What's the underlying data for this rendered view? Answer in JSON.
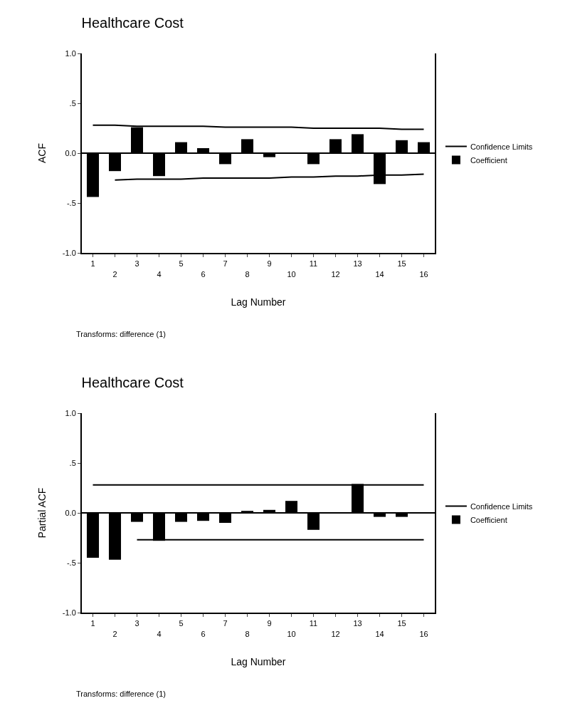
{
  "chart_data": [
    {
      "type": "bar",
      "title": "Healthcare Cost",
      "xlabel": "Lag Number",
      "ylabel": "ACF",
      "ref_lines": [
        {
          "axis": "y",
          "value": 0
        }
      ],
      "annotations": [
        "Transforms: difference (1)"
      ],
      "categories": [
        "1",
        "2",
        "3",
        "4",
        "5",
        "6",
        "7",
        "8",
        "9",
        "10",
        "11",
        "12",
        "13",
        "14",
        "15",
        "16"
      ],
      "series": [
        {
          "name": "Coefficient",
          "color": "#000000",
          "values": [
            -0.44,
            -0.18,
            0.26,
            -0.23,
            0.11,
            0.05,
            -0.11,
            0.14,
            -0.04,
            0,
            -0.11,
            0.14,
            0.19,
            -0.31,
            0.13,
            0.11
          ]
        },
        {
          "name": "Confidence Limits",
          "type": "line",
          "color": "#000000",
          "values": [
            0.28,
            0.28,
            0.27,
            0.27,
            0.27,
            0.27,
            0.26,
            0.26,
            0.26,
            0.26,
            0.25,
            0.25,
            0.25,
            0.25,
            0.24,
            0.24
          ]
        },
        {
          "type": "line",
          "color": "#000000",
          "values": [
            null,
            -0.27,
            -0.26,
            -0.26,
            -0.26,
            -0.25,
            -0.25,
            -0.25,
            -0.25,
            -0.24,
            -0.24,
            -0.23,
            -0.23,
            -0.22,
            -0.22,
            -0.21
          ]
        }
      ],
      "ylim": [
        -1,
        1
      ],
      "yticks": [
        {
          "value": 1,
          "label": "1.0"
        },
        {
          "value": 0.5,
          "label": ".5"
        },
        {
          "value": 0,
          "label": "0.0"
        },
        {
          "value": -0.5,
          "label": "-.5"
        },
        {
          "value": -1,
          "label": "-1.0"
        }
      ],
      "grid": false,
      "legend": "right",
      "marker": "none",
      "line_style": "solid"
    },
    {
      "type": "bar",
      "title": "Healthcare Cost",
      "xlabel": "Lag Number",
      "ylabel": "Partial ACF",
      "ref_lines": [
        {
          "axis": "y",
          "value": 0
        }
      ],
      "annotations": [
        "Transforms: difference (1)"
      ],
      "categories": [
        "1",
        "2",
        "3",
        "4",
        "5",
        "6",
        "7",
        "8",
        "9",
        "10",
        "11",
        "12",
        "13",
        "14",
        "15",
        "16"
      ],
      "series": [
        {
          "name": "Coefficient",
          "color": "#000000",
          "values": [
            -0.45,
            -0.47,
            -0.09,
            -0.28,
            -0.09,
            -0.08,
            -0.1,
            0.02,
            0.03,
            0.12,
            -0.17,
            0,
            0.29,
            -0.04,
            -0.04,
            0
          ]
        },
        {
          "name": "Confidence Limits",
          "type": "line",
          "color": "#000000",
          "values": [
            0.28,
            0.28,
            0.28,
            0.28,
            0.28,
            0.28,
            0.28,
            0.28,
            0.28,
            0.28,
            0.28,
            0.28,
            0.28,
            0.28,
            0.28,
            0.28
          ]
        },
        {
          "type": "line",
          "color": "#000000",
          "values": [
            null,
            null,
            -0.27,
            -0.27,
            -0.27,
            -0.27,
            -0.27,
            -0.27,
            -0.27,
            -0.27,
            -0.27,
            -0.27,
            -0.27,
            -0.27,
            -0.27,
            -0.27
          ]
        }
      ],
      "ylim": [
        -1,
        1
      ],
      "yticks": [
        {
          "value": 1,
          "label": "1.0"
        },
        {
          "value": 0.5,
          "label": ".5"
        },
        {
          "value": 0,
          "label": "0.0"
        },
        {
          "value": -0.5,
          "label": "-.5"
        },
        {
          "value": -1,
          "label": "-1.0"
        }
      ],
      "grid": false,
      "legend": "right",
      "marker": "none",
      "line_style": "solid"
    }
  ]
}
